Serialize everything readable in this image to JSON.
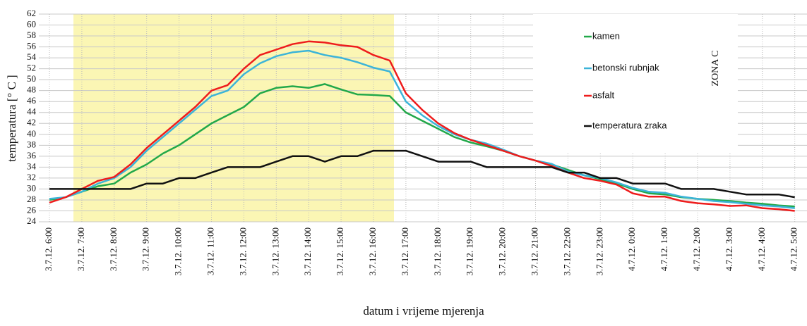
{
  "chart_data": {
    "type": "line",
    "y_label": "temperatura [° C ]",
    "x_label": "datum i vrijeme mjerenja",
    "annotation": "ZONA C",
    "categories": [
      "3.7.12. 6:00",
      null,
      "3.7.12. 7:00",
      null,
      "3.7.12. 8:00",
      null,
      "3.7.12. 9:00",
      null,
      "3.7.12. 10:00",
      null,
      "3.7.12. 11:00",
      null,
      "3.7.12. 12:00",
      null,
      "3.7.12. 13:00",
      null,
      "3.7.12. 14:00",
      null,
      "3.7.12. 15:00",
      null,
      "3.7.12. 16:00",
      null,
      "3.7.12. 17:00",
      null,
      "3.7.12. 18:00",
      null,
      "3.7.12. 19:00",
      null,
      "3.7.12. 20:00",
      null,
      "3.7.12. 21:00",
      null,
      "3.7.12. 22:00",
      null,
      "3.7.12. 23:00",
      null,
      "4.7.12. 0:00",
      null,
      "4.7.12. 1:00",
      null,
      "4.7.12. 2:00",
      null,
      "4.7.12. 3:00",
      null,
      "4.7.12. 4:00",
      null,
      "4.7.12. 5:00"
    ],
    "series": [
      {
        "name": "kamen",
        "color": "#22a84a",
        "values": [
          28,
          28.5,
          29.5,
          30.5,
          31,
          33,
          34.5,
          36.5,
          38,
          40,
          42,
          43.5,
          45,
          47.5,
          48.5,
          48.8,
          48.5,
          49.2,
          48.2,
          47.3,
          47.2,
          47,
          44,
          42.5,
          41,
          39.5,
          38.5,
          37.8,
          37,
          36,
          35.2,
          34.5,
          33.5,
          32.5,
          31.8,
          31,
          30,
          29.2,
          29,
          28.5,
          28.2,
          28,
          27.8,
          27.5,
          27.3,
          27,
          26.8
        ]
      },
      {
        "name": "betonski rubnjak",
        "color": "#3cb4d8",
        "values": [
          28.2,
          28.5,
          29.5,
          31,
          32,
          34,
          37,
          39.5,
          42,
          44.5,
          47,
          48,
          51,
          53,
          54.3,
          55,
          55.3,
          54.5,
          54,
          53.2,
          52.2,
          51.5,
          46,
          43.5,
          41.5,
          40,
          39,
          38.3,
          37.2,
          36,
          35.2,
          34.6,
          33.2,
          32.5,
          32,
          31.2,
          30.2,
          29.5,
          29.3,
          28.6,
          28.2,
          27.8,
          27.6,
          27.3,
          27,
          26.8,
          26.5
        ]
      },
      {
        "name": "asfalt",
        "color": "#ee1c1c",
        "values": [
          27.5,
          28.5,
          30,
          31.5,
          32.2,
          34.5,
          37.5,
          40,
          42.5,
          45,
          48,
          49,
          52,
          54.5,
          55.5,
          56.5,
          57,
          56.8,
          56.3,
          56,
          54.5,
          53.5,
          47.5,
          44.5,
          42,
          40.2,
          39,
          38,
          37,
          36,
          35.2,
          34.2,
          33,
          32,
          31.5,
          30.8,
          29.2,
          28.6,
          28.6,
          27.8,
          27.4,
          27.2,
          26.9,
          27,
          26.5,
          26.3,
          26
        ]
      },
      {
        "name": "temperatura zraka",
        "color": "#111111",
        "values": [
          30,
          30,
          30,
          30,
          30,
          30,
          31,
          31,
          32,
          32,
          33,
          34,
          34,
          34,
          35,
          36,
          36,
          35,
          36,
          36,
          37,
          37,
          37,
          36,
          35,
          35,
          35,
          34,
          34,
          34,
          34,
          34,
          33,
          33,
          32,
          32,
          31,
          31,
          31,
          30,
          30,
          30,
          29.5,
          29,
          29,
          29,
          28.5
        ]
      }
    ],
    "ylim": [
      24,
      62
    ],
    "yticks": [
      24,
      26,
      28,
      30,
      32,
      34,
      36,
      38,
      40,
      42,
      44,
      46,
      48,
      50,
      52,
      54,
      56,
      58,
      60,
      62
    ],
    "grid": true
  }
}
